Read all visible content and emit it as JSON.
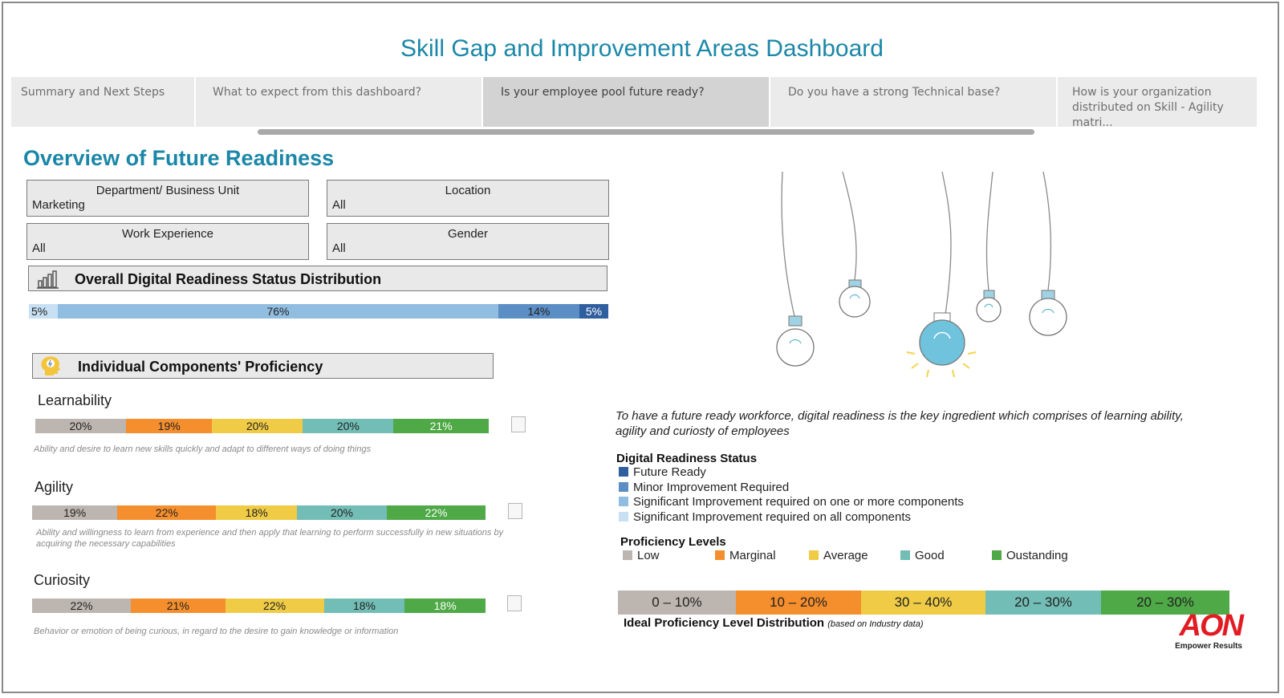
{
  "title": "Skill Gap and Improvement Areas Dashboard",
  "tabs": [
    {
      "label": "Summary and Next Steps"
    },
    {
      "label": "What to expect from this dashboard?"
    },
    {
      "label": "Is your employee pool future ready?"
    },
    {
      "label": "Do you have a strong Technical base?"
    },
    {
      "label": "How is your organization distributed on Skill - Agility matri..."
    }
  ],
  "heading": "Overview of Future Readiness",
  "filters": {
    "department": {
      "label": "Department/ Business Unit",
      "value": "Marketing"
    },
    "location": {
      "label": "Location",
      "value": "All"
    },
    "experience": {
      "label": "Work Experience",
      "value": "All"
    },
    "gender": {
      "label": "Gender",
      "value": "All"
    }
  },
  "overall": {
    "title": "Overall Digital Readiness Status Distribution",
    "segments": [
      {
        "label": "5%",
        "value": 5,
        "color": "#c7e0f3"
      },
      {
        "label": "76%",
        "value": 76,
        "color": "#90bde0"
      },
      {
        "label": "14%",
        "value": 14,
        "color": "#5b8ec4"
      },
      {
        "label": "5%",
        "value": 5,
        "color": "#2f5f9e"
      }
    ]
  },
  "components": {
    "title": "Individual Components' Proficiency",
    "items": [
      {
        "name": "Learnability",
        "description": "Ability and desire to learn new skills quickly and adapt to different ways of doing things",
        "segments": [
          {
            "label": "20%",
            "value": 20
          },
          {
            "label": "19%",
            "value": 19
          },
          {
            "label": "20%",
            "value": 20
          },
          {
            "label": "20%",
            "value": 20
          },
          {
            "label": "21%",
            "value": 21
          }
        ]
      },
      {
        "name": "Agility",
        "description": "Ability and willingness to learn from experience and then apply that learning to perform successfully in new situations by acquiring the necessary capabilities",
        "segments": [
          {
            "label": "19%",
            "value": 19
          },
          {
            "label": "22%",
            "value": 22
          },
          {
            "label": "18%",
            "value": 18
          },
          {
            "label": "20%",
            "value": 20
          },
          {
            "label": "22%",
            "value": 22
          }
        ]
      },
      {
        "name": "Curiosity",
        "description": "Behavior or emotion of being curious, in regard to the desire to gain knowledge or information",
        "segments": [
          {
            "label": "22%",
            "value": 22
          },
          {
            "label": "21%",
            "value": 21
          },
          {
            "label": "22%",
            "value": 22
          },
          {
            "label": "18%",
            "value": 18
          },
          {
            "label": "18%",
            "value": 18
          }
        ]
      }
    ]
  },
  "proficiency_colors": [
    "#bdb5af",
    "#f58e2c",
    "#efcb46",
    "#72bdb5",
    "#4ea946"
  ],
  "intro_text": "To have a future ready workforce, digital readiness is the key ingredient which comprises of learning ability, agility and curiosty of employees",
  "readiness_legend": {
    "title": "Digital Readiness Status",
    "items": [
      {
        "label": "Future Ready",
        "color": "#2f5f9e"
      },
      {
        "label": "Minor Improvement Required",
        "color": "#5b8ec4"
      },
      {
        "label": "Significant Improvement required on one or more components",
        "color": "#90bde0"
      },
      {
        "label": "Significant Improvement required on all components",
        "color": "#c7e0f3"
      }
    ]
  },
  "proficiency_legend": {
    "title": "Proficiency Levels",
    "items": [
      {
        "label": "Low"
      },
      {
        "label": "Marginal"
      },
      {
        "label": "Average"
      },
      {
        "label": "Good"
      },
      {
        "label": "Oustanding"
      }
    ]
  },
  "ideal": {
    "segments": [
      {
        "label": "0 – 10%"
      },
      {
        "label": "10 – 20%"
      },
      {
        "label": "30 – 40%"
      },
      {
        "label": "20 – 30%"
      },
      {
        "label": "20 – 30%"
      }
    ],
    "caption": "Ideal Proficiency Level Distribution",
    "caption_note": "(based on Industry data)"
  },
  "logo": {
    "brand": "AON",
    "tagline": "Empower Results"
  }
}
